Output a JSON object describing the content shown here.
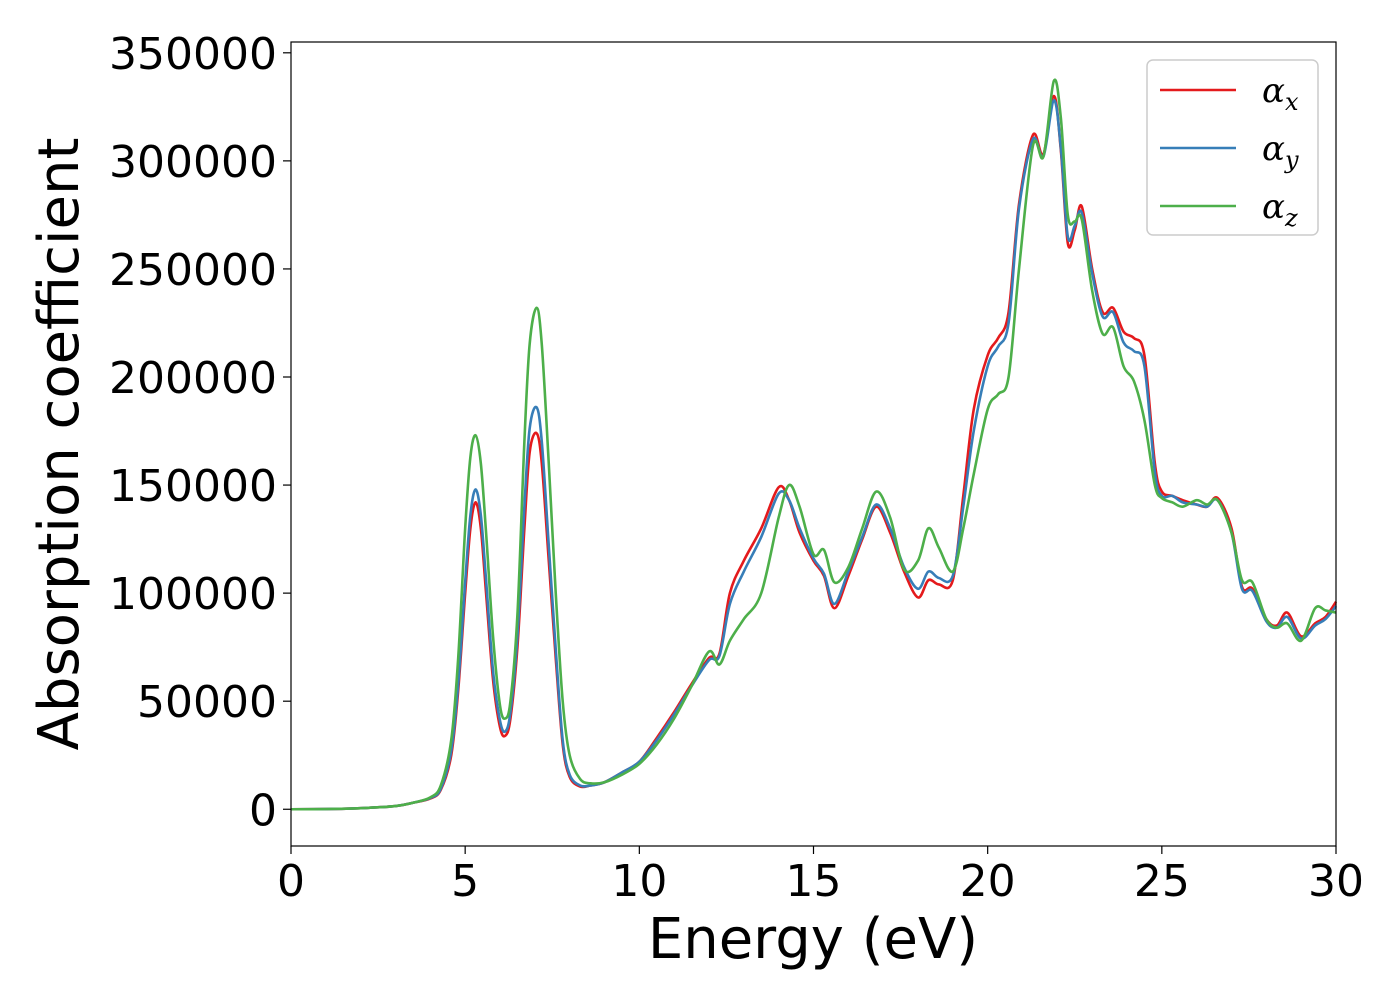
{
  "chart_data": {
    "type": "line",
    "xlabel": "Energy (eV)",
    "ylabel": "Absorption coefficient",
    "xlim": [
      0,
      30
    ],
    "ylim": [
      -17000,
      355000
    ],
    "xticks": [
      0,
      5,
      10,
      15,
      20,
      25,
      30
    ],
    "yticks": [
      0,
      50000,
      100000,
      150000,
      200000,
      250000,
      300000,
      350000
    ],
    "grid": false,
    "legend_position": "top-right",
    "series": [
      {
        "name": "α",
        "subscript": "x",
        "color": "#e41a1c",
        "x": [
          0,
          1,
          2,
          3,
          3.5,
          4,
          4.3,
          4.6,
          4.8,
          5.0,
          5.15,
          5.3,
          5.45,
          5.6,
          5.8,
          6.0,
          6.15,
          6.3,
          6.5,
          6.7,
          6.85,
          7.05,
          7.2,
          7.4,
          7.6,
          7.8,
          8.0,
          8.3,
          8.6,
          9.0,
          9.5,
          10.0,
          10.5,
          11.0,
          11.5,
          12.0,
          12.3,
          12.6,
          13.0,
          13.5,
          14.0,
          14.3,
          14.6,
          15.0,
          15.3,
          15.6,
          16.0,
          16.4,
          16.8,
          17.2,
          17.6,
          18.0,
          18.3,
          18.6,
          19.0,
          19.3,
          19.6,
          20.0,
          20.3,
          20.6,
          20.9,
          21.3,
          21.6,
          21.9,
          22.1,
          22.3,
          22.5,
          22.7,
          23.0,
          23.3,
          23.6,
          23.9,
          24.2,
          24.5,
          24.8,
          25.0,
          25.3,
          25.6,
          26.0,
          26.3,
          26.6,
          27.0,
          27.3,
          27.6,
          28.0,
          28.3,
          28.6,
          29.0,
          29.4,
          29.7,
          30.0
        ],
        "y": [
          0,
          100,
          500,
          1500,
          3000,
          5000,
          9000,
          25000,
          55000,
          100000,
          130000,
          142000,
          130000,
          100000,
          60000,
          38000,
          34000,
          42000,
          75000,
          130000,
          165000,
          174000,
          160000,
          115000,
          70000,
          30000,
          15000,
          10500,
          11000,
          12500,
          17000,
          22000,
          33000,
          45000,
          58000,
          70000,
          72000,
          100000,
          115000,
          130000,
          149000,
          143000,
          128000,
          115000,
          108000,
          93000,
          108000,
          125000,
          140000,
          128000,
          110000,
          98000,
          106000,
          104000,
          106000,
          145000,
          185000,
          210000,
          218000,
          230000,
          280000,
          312000,
          303000,
          330000,
          305000,
          262000,
          268000,
          279000,
          250000,
          230000,
          232000,
          221000,
          218000,
          210000,
          160000,
          147000,
          145000,
          143000,
          141000,
          140000,
          144000,
          130000,
          103000,
          102000,
          88000,
          85000,
          91000,
          80000,
          86000,
          89000,
          96000
        ]
      },
      {
        "name": "α",
        "subscript": "y",
        "color": "#377eb8",
        "x": [
          0,
          1,
          2,
          3,
          3.5,
          4,
          4.3,
          4.6,
          4.8,
          5.0,
          5.15,
          5.3,
          5.45,
          5.6,
          5.8,
          6.0,
          6.15,
          6.3,
          6.5,
          6.7,
          6.85,
          7.05,
          7.2,
          7.4,
          7.6,
          7.8,
          8.0,
          8.3,
          8.6,
          9.0,
          9.5,
          10.0,
          10.5,
          11.0,
          11.5,
          12.0,
          12.3,
          12.6,
          13.0,
          13.5,
          14.0,
          14.3,
          14.6,
          15.0,
          15.3,
          15.6,
          16.0,
          16.4,
          16.8,
          17.2,
          17.6,
          18.0,
          18.3,
          18.6,
          19.0,
          19.3,
          19.6,
          20.0,
          20.3,
          20.6,
          20.9,
          21.3,
          21.6,
          21.9,
          22.1,
          22.3,
          22.5,
          22.7,
          23.0,
          23.3,
          23.6,
          23.9,
          24.2,
          24.5,
          24.8,
          25.0,
          25.3,
          25.6,
          26.0,
          26.3,
          26.6,
          27.0,
          27.3,
          27.6,
          28.0,
          28.3,
          28.6,
          29.0,
          29.4,
          29.7,
          30.0
        ],
        "y": [
          0,
          100,
          500,
          1500,
          3000,
          5200,
          9500,
          27000,
          58000,
          105000,
          136000,
          148000,
          136000,
          106000,
          64000,
          41000,
          36000,
          45000,
          80000,
          140000,
          176000,
          186000,
          170000,
          122000,
          74000,
          32000,
          16000,
          11000,
          11000,
          12500,
          17000,
          22000,
          32000,
          44000,
          57000,
          69000,
          71000,
          95000,
          110000,
          126000,
          146000,
          143000,
          130000,
          116000,
          109000,
          95000,
          110000,
          126000,
          141000,
          130000,
          112000,
          102000,
          110000,
          107000,
          108000,
          140000,
          175000,
          205000,
          214000,
          225000,
          278000,
          310000,
          302000,
          328000,
          306000,
          265000,
          270000,
          276000,
          248000,
          228000,
          230000,
          216000,
          212000,
          205000,
          156000,
          145000,
          145000,
          142000,
          141000,
          140000,
          143000,
          128000,
          102000,
          101000,
          87000,
          84000,
          89000,
          79000,
          85000,
          88000,
          94000
        ]
      },
      {
        "name": "α",
        "subscript": "z",
        "color": "#4daf4a",
        "x": [
          0,
          1,
          2,
          3,
          3.5,
          4,
          4.3,
          4.6,
          4.8,
          5.0,
          5.15,
          5.3,
          5.45,
          5.6,
          5.8,
          6.0,
          6.15,
          6.3,
          6.5,
          6.7,
          6.85,
          7.05,
          7.2,
          7.4,
          7.6,
          7.8,
          8.0,
          8.3,
          8.6,
          9.0,
          9.5,
          10.0,
          10.5,
          11.0,
          11.5,
          12.0,
          12.3,
          12.6,
          13.0,
          13.5,
          14.0,
          14.3,
          14.6,
          15.0,
          15.3,
          15.6,
          16.0,
          16.4,
          16.8,
          17.2,
          17.6,
          18.0,
          18.3,
          18.6,
          19.0,
          19.3,
          19.6,
          20.0,
          20.3,
          20.6,
          20.9,
          21.3,
          21.6,
          21.9,
          22.1,
          22.3,
          22.5,
          22.7,
          23.0,
          23.3,
          23.6,
          23.9,
          24.2,
          24.5,
          24.8,
          25.0,
          25.3,
          25.6,
          26.0,
          26.3,
          26.6,
          27.0,
          27.3,
          27.6,
          28.0,
          28.3,
          28.6,
          29.0,
          29.4,
          29.7,
          30.0
        ],
        "y": [
          0,
          100,
          500,
          1500,
          3000,
          5500,
          11000,
          32000,
          70000,
          130000,
          163000,
          173000,
          160000,
          128000,
          80000,
          48000,
          42000,
          50000,
          90000,
          170000,
          215000,
          232000,
          215000,
          160000,
          100000,
          50000,
          25000,
          14000,
          12000,
          12500,
          16000,
          21000,
          30000,
          42000,
          57000,
          73000,
          67000,
          78000,
          88000,
          100000,
          135000,
          150000,
          140000,
          118000,
          120000,
          105000,
          112000,
          130000,
          147000,
          135000,
          111000,
          115000,
          130000,
          121000,
          110000,
          130000,
          155000,
          185000,
          192000,
          200000,
          250000,
          307000,
          302000,
          337000,
          320000,
          275000,
          272000,
          273000,
          240000,
          220000,
          223000,
          205000,
          198000,
          180000,
          150000,
          144000,
          142000,
          140000,
          143000,
          141000,
          143000,
          128000,
          106000,
          105000,
          88000,
          84000,
          86000,
          78000,
          93000,
          92000,
          91000
        ]
      }
    ]
  }
}
